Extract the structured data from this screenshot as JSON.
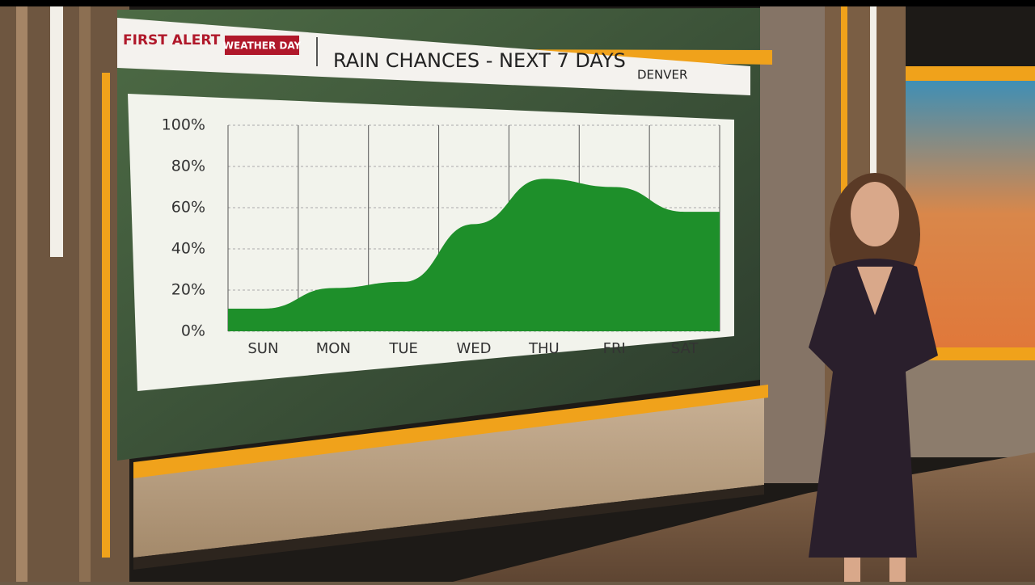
{
  "header": {
    "brand": "FIRST ALERT",
    "badge": "WEATHER DAY",
    "location": "DENVER"
  },
  "chart_data": {
    "type": "area",
    "title": "RAIN CHANCES - NEXT 7 DAYS",
    "categories": [
      "SUN",
      "MON",
      "TUE",
      "WED",
      "THU",
      "FRI",
      "SAT"
    ],
    "values": [
      11,
      21,
      24,
      52,
      74,
      70,
      58
    ],
    "color": "#1e8f2a",
    "ylim": [
      0,
      100
    ],
    "yticks": [
      {
        "value": 0,
        "label": "0%"
      },
      {
        "value": 20,
        "label": "20%"
      },
      {
        "value": 40,
        "label": "40%"
      },
      {
        "value": 60,
        "label": "60%"
      },
      {
        "value": 80,
        "label": "80%"
      },
      {
        "value": 100,
        "label": "100%"
      }
    ],
    "grid": true
  }
}
